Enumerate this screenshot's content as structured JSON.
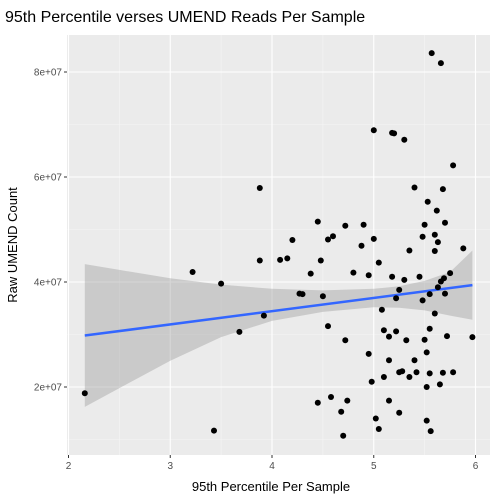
{
  "chart_data": {
    "type": "scatter",
    "title": "95th Percentile verses UMEND Reads Per Sample",
    "xlabel": "95th Percentile Per Sample",
    "ylabel": "Raw UMEND Count",
    "xlim": [
      2.0,
      6.0
    ],
    "ylim": [
      9000000,
      87000000
    ],
    "x_ticks": [
      2,
      3,
      4,
      5,
      6
    ],
    "x_tick_labels": [
      "2",
      "3",
      "4",
      "5",
      "6"
    ],
    "y_ticks": [
      20000000,
      40000000,
      60000000,
      80000000
    ],
    "y_tick_labels": [
      "2e+07",
      "4e+07",
      "6e+07",
      "8e+07"
    ],
    "grid": true,
    "background": "#ebebeb",
    "point_color": "#000000",
    "fit_line_color": "#3366ff",
    "ribbon_color": "#999999",
    "points": [
      [
        2.16,
        18800000
      ],
      [
        3.22,
        41900000
      ],
      [
        3.43,
        11700000
      ],
      [
        3.5,
        39700000
      ],
      [
        3.68,
        30500000
      ],
      [
        3.88,
        57900000
      ],
      [
        3.88,
        44100000
      ],
      [
        3.92,
        33600000
      ],
      [
        4.08,
        44200000
      ],
      [
        4.15,
        44500000
      ],
      [
        4.2,
        48000000
      ],
      [
        4.27,
        37800000
      ],
      [
        4.3,
        37700000
      ],
      [
        4.38,
        41600000
      ],
      [
        4.45,
        17000000
      ],
      [
        4.45,
        51500000
      ],
      [
        4.48,
        44100000
      ],
      [
        4.5,
        37300000
      ],
      [
        4.55,
        48100000
      ],
      [
        4.55,
        31600000
      ],
      [
        4.58,
        18100000
      ],
      [
        4.6,
        48700000
      ],
      [
        4.68,
        15300000
      ],
      [
        4.7,
        10700000
      ],
      [
        4.72,
        28900000
      ],
      [
        4.72,
        50700000
      ],
      [
        4.74,
        17400000
      ],
      [
        4.8,
        41800000
      ],
      [
        4.88,
        46900000
      ],
      [
        4.9,
        50900000
      ],
      [
        4.95,
        41300000
      ],
      [
        4.95,
        26300000
      ],
      [
        4.98,
        21000000
      ],
      [
        5.0,
        68900000
      ],
      [
        5.0,
        48200000
      ],
      [
        5.02,
        14000000
      ],
      [
        5.05,
        12000000
      ],
      [
        5.05,
        43700000
      ],
      [
        5.08,
        34700000
      ],
      [
        5.1,
        21900000
      ],
      [
        5.1,
        30800000
      ],
      [
        5.15,
        25100000
      ],
      [
        5.15,
        17400000
      ],
      [
        5.15,
        29600000
      ],
      [
        5.18,
        41000000
      ],
      [
        5.18,
        68400000
      ],
      [
        5.2,
        68300000
      ],
      [
        5.22,
        36900000
      ],
      [
        5.22,
        30600000
      ],
      [
        5.25,
        15100000
      ],
      [
        5.25,
        22800000
      ],
      [
        5.25,
        38500000
      ],
      [
        5.28,
        23000000
      ],
      [
        5.3,
        67100000
      ],
      [
        5.3,
        40400000
      ],
      [
        5.32,
        28900000
      ],
      [
        5.35,
        46000000
      ],
      [
        5.35,
        21900000
      ],
      [
        5.4,
        58000000
      ],
      [
        5.4,
        25100000
      ],
      [
        5.42,
        22800000
      ],
      [
        5.45,
        41000000
      ],
      [
        5.48,
        48600000
      ],
      [
        5.48,
        36500000
      ],
      [
        5.5,
        50900000
      ],
      [
        5.5,
        29000000
      ],
      [
        5.52,
        26600000
      ],
      [
        5.52,
        20000000
      ],
      [
        5.52,
        13600000
      ],
      [
        5.53,
        55300000
      ],
      [
        5.55,
        37700000
      ],
      [
        5.55,
        31100000
      ],
      [
        5.55,
        22600000
      ],
      [
        5.56,
        11600000
      ],
      [
        5.57,
        83600000
      ],
      [
        5.6,
        49000000
      ],
      [
        5.6,
        45900000
      ],
      [
        5.6,
        34000000
      ],
      [
        5.62,
        53600000
      ],
      [
        5.63,
        47600000
      ],
      [
        5.63,
        39000000
      ],
      [
        5.65,
        20500000
      ],
      [
        5.66,
        81700000
      ],
      [
        5.66,
        40100000
      ],
      [
        5.68,
        57700000
      ],
      [
        5.68,
        22700000
      ],
      [
        5.69,
        40700000
      ],
      [
        5.7,
        51300000
      ],
      [
        5.7,
        37800000
      ],
      [
        5.72,
        29700000
      ],
      [
        5.75,
        41700000
      ],
      [
        5.78,
        62200000
      ],
      [
        5.78,
        22800000
      ],
      [
        5.88,
        46400000
      ],
      [
        5.97,
        29500000
      ]
    ],
    "fit_line": {
      "x": [
        2.16,
        5.97
      ],
      "y": [
        29800000,
        39400000
      ]
    },
    "confidence_band": {
      "x": [
        2.16,
        2.5,
        3.0,
        3.5,
        4.0,
        4.5,
        5.0,
        5.25,
        5.5,
        5.75,
        5.97
      ],
      "lower": [
        16200000,
        19800000,
        25000000,
        29500000,
        32600000,
        34300000,
        35200000,
        35100000,
        34600000,
        33600000,
        32800000
      ],
      "upper": [
        43400000,
        42300000,
        40700000,
        39500000,
        38700000,
        38400000,
        38700000,
        39200000,
        40200000,
        41900000,
        46000000
      ]
    }
  }
}
